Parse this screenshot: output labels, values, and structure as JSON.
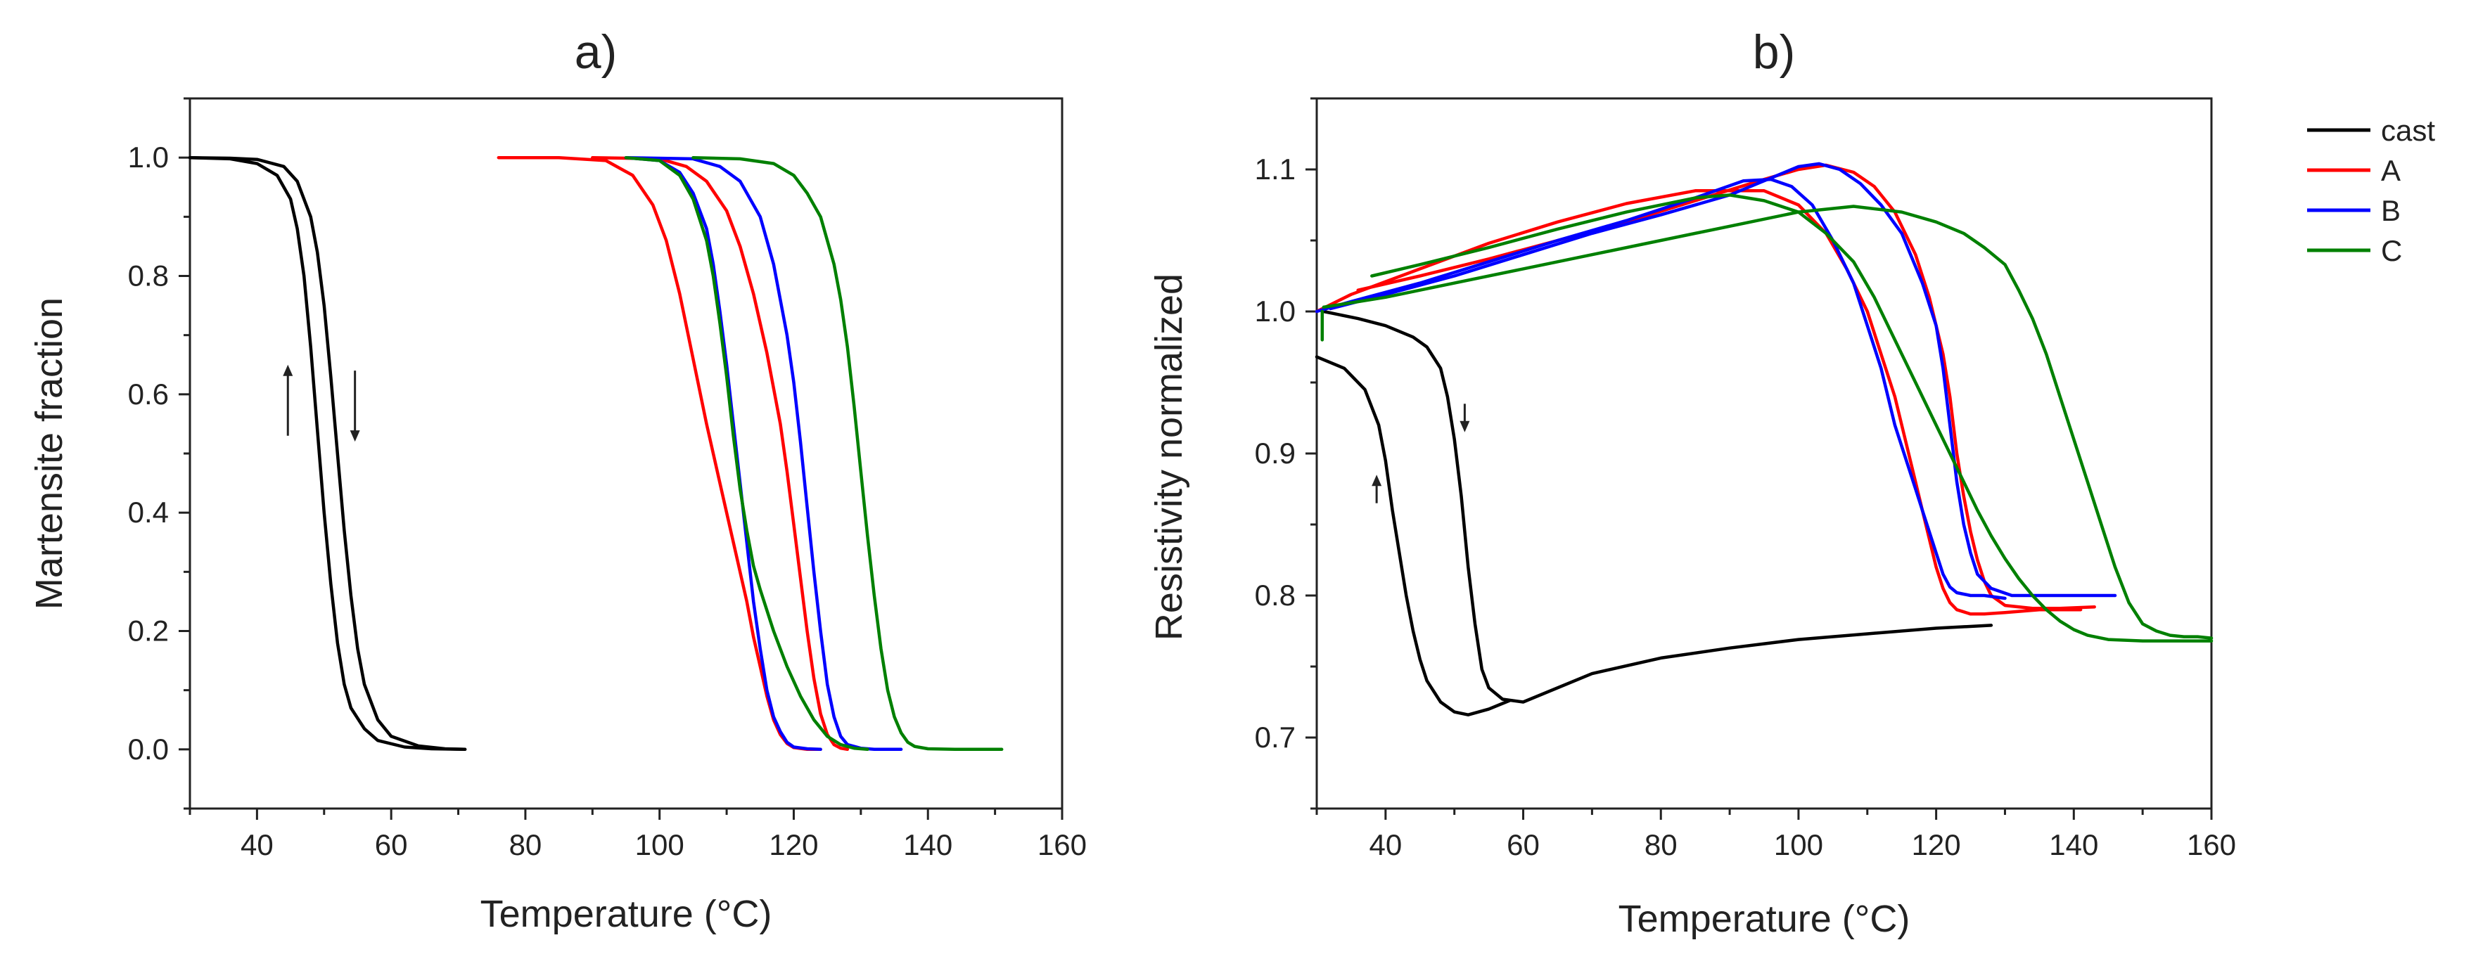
{
  "colors": {
    "cast": "#000000",
    "A": "#ff0000",
    "B": "#0000ff",
    "C": "#008000"
  },
  "chart_data": [
    {
      "type": "line",
      "panel_label": "a)",
      "xlabel": "Temperature (°C)",
      "ylabel": "Martensite fraction",
      "xlim": [
        30,
        160
      ],
      "ylim": [
        -0.1,
        1.1
      ],
      "xticks": [
        40,
        60,
        80,
        100,
        120,
        140,
        160
      ],
      "yticks": [
        0.0,
        0.2,
        0.4,
        0.6,
        0.8,
        1.0
      ],
      "ytick_labels": [
        "0.0",
        "0.2",
        "0.4",
        "0.6",
        "0.8",
        "1.0"
      ],
      "grid": false,
      "series": [
        {
          "group": "cast",
          "branch": "cooling",
          "x": [
            30,
            36,
            40,
            43,
            45,
            46,
            47,
            48,
            49,
            50,
            51,
            52,
            53,
            54,
            56,
            58,
            62,
            66,
            71
          ],
          "y": [
            1.0,
            0.998,
            0.99,
            0.97,
            0.93,
            0.88,
            0.8,
            0.68,
            0.54,
            0.4,
            0.28,
            0.18,
            0.11,
            0.07,
            0.035,
            0.015,
            0.004,
            0.001,
            0.0
          ]
        },
        {
          "group": "cast",
          "branch": "heating",
          "x": [
            30,
            36,
            40,
            44,
            46,
            48,
            49,
            50,
            51,
            52,
            53,
            54,
            55,
            56,
            58,
            60,
            64,
            68,
            71
          ],
          "y": [
            1.0,
            0.999,
            0.997,
            0.985,
            0.96,
            0.9,
            0.84,
            0.75,
            0.63,
            0.5,
            0.37,
            0.26,
            0.17,
            0.11,
            0.05,
            0.022,
            0.006,
            0.001,
            0.0
          ]
        },
        {
          "group": "A",
          "branch": "cooling",
          "x": [
            76,
            85,
            92,
            96,
            99,
            101,
            103,
            105,
            107,
            109,
            111,
            113,
            114,
            115,
            116,
            117,
            118,
            119,
            120,
            122,
            124
          ],
          "y": [
            1.0,
            1.0,
            0.995,
            0.97,
            0.92,
            0.86,
            0.77,
            0.66,
            0.55,
            0.45,
            0.35,
            0.25,
            0.19,
            0.14,
            0.09,
            0.05,
            0.025,
            0.01,
            0.003,
            0.0,
            0.0
          ]
        },
        {
          "group": "A",
          "branch": "heating",
          "x": [
            90,
            100,
            104,
            107,
            110,
            112,
            114,
            116,
            118,
            119,
            120,
            121,
            122,
            123,
            124,
            125,
            126,
            127,
            128
          ],
          "y": [
            1.0,
            0.998,
            0.985,
            0.96,
            0.91,
            0.85,
            0.77,
            0.67,
            0.55,
            0.47,
            0.38,
            0.29,
            0.2,
            0.12,
            0.06,
            0.025,
            0.008,
            0.002,
            0.0
          ]
        },
        {
          "group": "B",
          "branch": "cooling",
          "x": [
            95,
            100,
            103,
            105,
            107,
            108,
            109,
            110,
            111,
            112,
            113,
            114,
            115,
            116,
            117,
            118,
            119,
            120,
            122,
            124
          ],
          "y": [
            1.0,
            0.995,
            0.975,
            0.94,
            0.88,
            0.82,
            0.74,
            0.65,
            0.55,
            0.45,
            0.35,
            0.25,
            0.17,
            0.1,
            0.055,
            0.03,
            0.012,
            0.004,
            0.001,
            0.0
          ]
        },
        {
          "group": "B",
          "branch": "heating",
          "x": [
            95,
            105,
            109,
            112,
            115,
            117,
            119,
            120,
            121,
            122,
            123,
            124,
            125,
            126,
            127,
            128,
            130,
            132,
            136
          ],
          "y": [
            1.0,
            0.998,
            0.985,
            0.96,
            0.9,
            0.82,
            0.7,
            0.62,
            0.52,
            0.41,
            0.3,
            0.2,
            0.11,
            0.055,
            0.022,
            0.008,
            0.002,
            0.0,
            0.0
          ]
        },
        {
          "group": "C",
          "branch": "cooling",
          "x": [
            95,
            100,
            103,
            105,
            107,
            108,
            109,
            110,
            111,
            112,
            113,
            114,
            115,
            117,
            119,
            121,
            123,
            125,
            127,
            129,
            131
          ],
          "y": [
            1.0,
            0.995,
            0.97,
            0.93,
            0.86,
            0.8,
            0.72,
            0.63,
            0.53,
            0.44,
            0.37,
            0.31,
            0.27,
            0.2,
            0.14,
            0.09,
            0.05,
            0.022,
            0.008,
            0.002,
            0.0
          ]
        },
        {
          "group": "C",
          "branch": "heating",
          "x": [
            105,
            112,
            117,
            120,
            122,
            124,
            126,
            127,
            128,
            129,
            130,
            131,
            132,
            133,
            134,
            135,
            136,
            137,
            138,
            140,
            144,
            151
          ],
          "y": [
            1.0,
            0.998,
            0.99,
            0.97,
            0.94,
            0.9,
            0.82,
            0.76,
            0.68,
            0.58,
            0.47,
            0.36,
            0.26,
            0.17,
            0.1,
            0.055,
            0.028,
            0.012,
            0.005,
            0.001,
            0.0,
            0.0
          ]
        }
      ],
      "annotations": [
        {
          "type": "arrow",
          "direction": "up",
          "x": 44.6,
          "y_from": 0.53,
          "y_to": 0.65
        },
        {
          "type": "arrow",
          "direction": "down",
          "x": 54.6,
          "y_from": 0.64,
          "y_to": 0.52
        }
      ]
    },
    {
      "type": "line",
      "panel_label": "b)",
      "xlabel": "Temperature (°C)",
      "ylabel": "Resistivity normalized",
      "xlim": [
        30,
        160
      ],
      "ylim": [
        0.65,
        1.15
      ],
      "xticks": [
        40,
        60,
        80,
        100,
        120,
        140,
        160
      ],
      "yticks": [
        0.7,
        0.8,
        0.9,
        1.0,
        1.1
      ],
      "ytick_labels": [
        "0.7",
        "0.8",
        "0.9",
        "1.0",
        "1.1"
      ],
      "grid": false,
      "legend": {
        "position": "outside-right",
        "entries": [
          {
            "label": "cast",
            "group": "cast"
          },
          {
            "label": "A",
            "group": "A"
          },
          {
            "label": "B",
            "group": "B"
          },
          {
            "label": "C",
            "group": "C"
          }
        ]
      },
      "series": [
        {
          "group": "cast",
          "branch": "cooling",
          "x": [
            30,
            34,
            37,
            39,
            40,
            41,
            42,
            43,
            44,
            45,
            46,
            48,
            50,
            52,
            55,
            58
          ],
          "y": [
            0.968,
            0.96,
            0.945,
            0.92,
            0.895,
            0.86,
            0.83,
            0.8,
            0.775,
            0.755,
            0.74,
            0.725,
            0.718,
            0.716,
            0.72,
            0.726
          ]
        },
        {
          "group": "cast",
          "branch": "heating",
          "x": [
            31,
            36,
            40,
            44,
            46,
            48,
            49,
            50,
            51,
            52,
            53,
            54,
            55,
            57,
            60,
            70,
            80,
            90,
            100,
            110,
            120,
            128
          ],
          "y": [
            1.0,
            0.995,
            0.99,
            0.982,
            0.975,
            0.96,
            0.94,
            0.91,
            0.87,
            0.82,
            0.78,
            0.748,
            0.735,
            0.727,
            0.725,
            0.745,
            0.756,
            0.763,
            0.769,
            0.773,
            0.777,
            0.779
          ]
        },
        {
          "group": "A",
          "branch": "heating",
          "x": [
            36,
            45,
            55,
            65,
            75,
            85,
            95,
            100,
            104,
            108,
            111,
            114,
            117,
            119,
            121,
            122,
            123,
            124,
            125,
            126,
            127,
            128,
            130,
            134,
            138,
            143
          ],
          "y": [
            1.015,
            1.025,
            1.037,
            1.05,
            1.063,
            1.078,
            1.093,
            1.1,
            1.103,
            1.098,
            1.088,
            1.07,
            1.04,
            1.01,
            0.97,
            0.94,
            0.9,
            0.87,
            0.845,
            0.825,
            0.81,
            0.8,
            0.793,
            0.791,
            0.791,
            0.792
          ]
        },
        {
          "group": "A",
          "branch": "cooling",
          "x": [
            141,
            135,
            130,
            127,
            125,
            123,
            122,
            121,
            120,
            119,
            118,
            117,
            116,
            115,
            114,
            112,
            110,
            107,
            104,
            100,
            95,
            85,
            75,
            65,
            55,
            45,
            35,
            30
          ],
          "y": [
            0.79,
            0.79,
            0.788,
            0.787,
            0.787,
            0.79,
            0.795,
            0.805,
            0.82,
            0.84,
            0.86,
            0.88,
            0.9,
            0.92,
            0.94,
            0.97,
            1.0,
            1.03,
            1.055,
            1.075,
            1.085,
            1.085,
            1.076,
            1.063,
            1.048,
            1.03,
            1.012,
            1.0
          ]
        },
        {
          "group": "B",
          "branch": "heating",
          "x": [
            32,
            40,
            50,
            60,
            70,
            80,
            90,
            95,
            100,
            103,
            106,
            109,
            112,
            115,
            118,
            120,
            121,
            122,
            123,
            124,
            125,
            126,
            128,
            131,
            135,
            140,
            146
          ],
          "y": [
            1.002,
            1.012,
            1.025,
            1.04,
            1.055,
            1.068,
            1.082,
            1.092,
            1.102,
            1.104,
            1.1,
            1.09,
            1.075,
            1.055,
            1.02,
            0.99,
            0.96,
            0.92,
            0.88,
            0.85,
            0.83,
            0.815,
            0.805,
            0.8,
            0.8,
            0.8,
            0.8
          ]
        },
        {
          "group": "B",
          "branch": "cooling",
          "x": [
            130,
            127,
            125,
            123,
            122,
            121,
            120,
            119,
            118,
            117,
            116,
            115,
            114,
            113,
            112,
            110,
            108,
            105,
            102,
            99,
            96,
            92,
            85,
            75,
            65,
            55,
            45,
            35,
            30
          ],
          "y": [
            0.798,
            0.8,
            0.8,
            0.802,
            0.806,
            0.815,
            0.83,
            0.845,
            0.86,
            0.875,
            0.89,
            0.905,
            0.92,
            0.94,
            0.96,
            0.99,
            1.02,
            1.05,
            1.075,
            1.088,
            1.093,
            1.092,
            1.08,
            1.064,
            1.05,
            1.035,
            1.02,
            1.007,
            1.0
          ]
        },
        {
          "group": "C",
          "branch": "heating",
          "x": [
            31,
            40,
            50,
            60,
            70,
            80,
            90,
            100,
            108,
            115,
            120,
            124,
            127,
            130,
            132,
            134,
            136,
            138,
            140,
            142,
            144,
            146,
            148,
            150,
            152,
            154,
            156,
            158,
            160
          ],
          "y": [
            1.003,
            1.01,
            1.02,
            1.03,
            1.04,
            1.05,
            1.06,
            1.07,
            1.074,
            1.07,
            1.063,
            1.055,
            1.045,
            1.033,
            1.015,
            0.995,
            0.97,
            0.94,
            0.91,
            0.88,
            0.85,
            0.82,
            0.795,
            0.78,
            0.775,
            0.772,
            0.771,
            0.771,
            0.77
          ]
        },
        {
          "group": "C",
          "branch": "cooling",
          "x": [
            160,
            150,
            145,
            142,
            140,
            138,
            136,
            134,
            132,
            130,
            128,
            126,
            124,
            122,
            120,
            117,
            114,
            111,
            108,
            104,
            100,
            95,
            90,
            85,
            75,
            65,
            55,
            45,
            38
          ],
          "y": [
            0.768,
            0.768,
            0.769,
            0.772,
            0.776,
            0.782,
            0.79,
            0.8,
            0.812,
            0.826,
            0.842,
            0.86,
            0.88,
            0.9,
            0.92,
            0.95,
            0.98,
            1.01,
            1.035,
            1.055,
            1.07,
            1.078,
            1.082,
            1.08,
            1.07,
            1.058,
            1.045,
            1.033,
            1.025
          ]
        },
        {
          "group": "C",
          "branch": "start-spike",
          "x": [
            30.8,
            30.8
          ],
          "y": [
            0.98,
            1.0
          ]
        }
      ],
      "annotations": [
        {
          "type": "arrow",
          "direction": "up",
          "x": 38.7,
          "y_from": 0.865,
          "y_to": 0.885
        },
        {
          "type": "arrow",
          "direction": "down",
          "x": 51.5,
          "y_from": 0.935,
          "y_to": 0.915
        }
      ]
    }
  ]
}
